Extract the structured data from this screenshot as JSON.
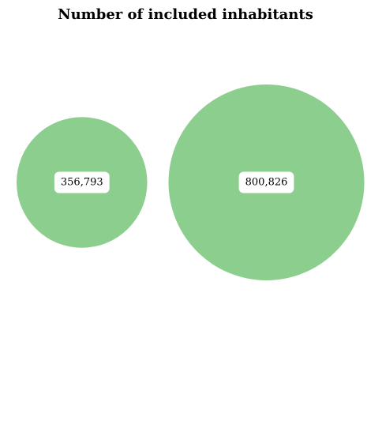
{
  "chart_data": {
    "type": "bubble",
    "title": "Number of included inhabitants",
    "bubbles": [
      {
        "value": 356793,
        "label": "356,793"
      },
      {
        "value": 800826,
        "label": "800,826"
      }
    ],
    "color": "#8CCE8E",
    "label_background": "#FFFFFF",
    "label_text_color": "#000000",
    "axes": false,
    "grid": false,
    "legend": "none"
  }
}
